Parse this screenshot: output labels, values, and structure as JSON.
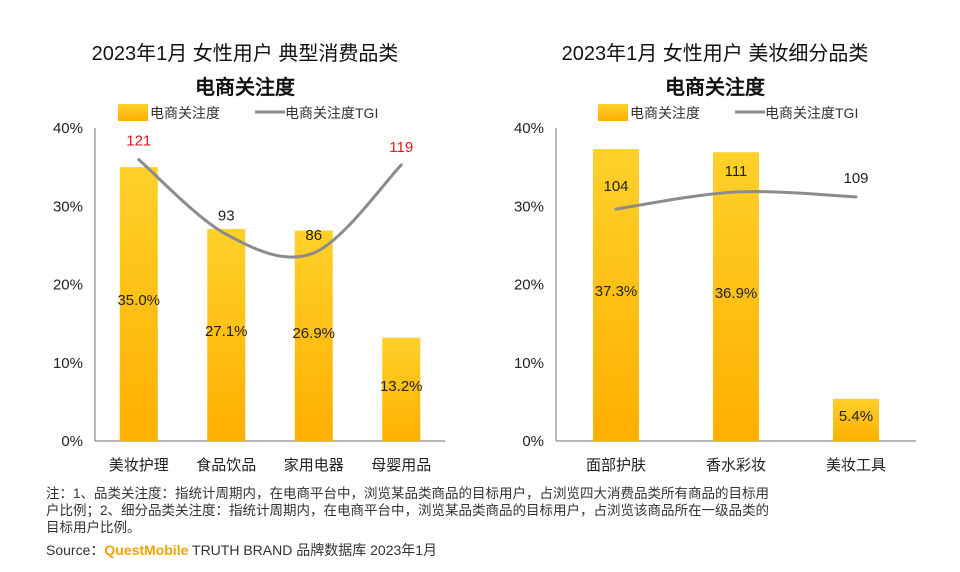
{
  "chart_data": [
    {
      "type": "bar",
      "title": "2023年1月 女性用户 典型消费品类",
      "subtitle": "电商关注度",
      "categories": [
        "美妆护理",
        "食品饮品",
        "家用电器",
        "母婴用品"
      ],
      "series": [
        {
          "name": "电商关注度",
          "values": [
            35.0,
            27.1,
            26.9,
            13.2
          ],
          "labels": [
            "35.0%",
            "27.1%",
            "26.9%",
            "13.2%"
          ]
        },
        {
          "name": "电商关注度TGI",
          "values": [
            121,
            93,
            86,
            119
          ]
        }
      ],
      "y_ticks": [
        "0%",
        "10%",
        "20%",
        "30%",
        "40%"
      ],
      "ylim": [
        0,
        40
      ],
      "tgi_highlight_color": "#E8141B",
      "tgi_highlight": [
        true,
        false,
        false,
        true
      ],
      "legend": "top",
      "grid": false
    },
    {
      "type": "bar",
      "title": "2023年1月 女性用户 美妆细分品类",
      "subtitle": "电商关注度",
      "categories": [
        "面部护肤",
        "香水彩妆",
        "美妆工具"
      ],
      "series": [
        {
          "name": "电商关注度",
          "values": [
            37.3,
            36.9,
            5.4
          ],
          "labels": [
            "37.3%",
            "36.9%",
            "5.4%"
          ]
        },
        {
          "name": "电商关注度TGI",
          "values": [
            104,
            111,
            109
          ]
        }
      ],
      "y_ticks": [
        "0%",
        "10%",
        "20%",
        "30%",
        "40%"
      ],
      "ylim": [
        0,
        40
      ],
      "tgi_highlight_color": "#E8141B",
      "tgi_highlight": [
        false,
        false,
        false
      ],
      "legend": "top",
      "grid": false
    }
  ],
  "colors": {
    "bar_top": "#FFD12A",
    "bar_bottom": "#FFAF00",
    "line": "#8C8C8C",
    "axis": "#8A8A8A"
  },
  "notes": {
    "line1": "注：1、品类关注度：指统计周期内，在电商平台中，浏览某品类商品的目标用户，占浏览四大消费品类所有商品的目标用",
    "line2": "户比例；2、细分品类关注度：指统计周期内，在电商平台中，浏览某品类商品的目标用户，占浏览该商品所在一级品类的",
    "line3": "目标用户比例。"
  },
  "source": {
    "prefix": "Source：",
    "brand": "QuestMobile",
    "rest": " TRUTH BRAND 品牌数据库 2023年1月"
  }
}
